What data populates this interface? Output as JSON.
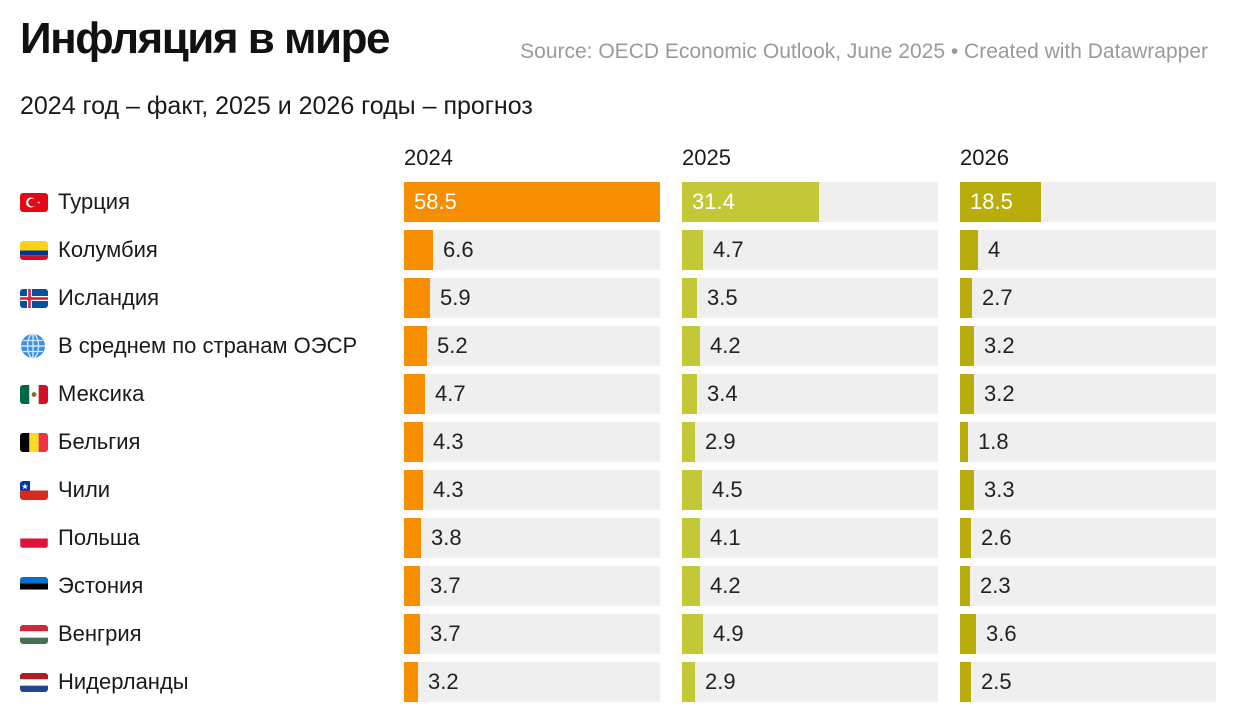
{
  "header": {
    "title": "Инфляция в мире",
    "source": "Source: OECD Economic Outlook, June 2025 • Created with Datawrapper",
    "subtitle": "2024 год – факт, 2025 и 2026 годы – прогноз"
  },
  "colors": {
    "y2024": "#f78d00",
    "y2025": "#c2c836",
    "y2026": "#b8ad0b",
    "track": "#efefef"
  },
  "chart_data": {
    "type": "bar",
    "title": "Инфляция в мире",
    "subtitle": "2024 год – факт, 2025 и 2026 годы – прогноз",
    "categories": [
      "Турция",
      "Колумбия",
      "Исландия",
      "В среднем по странам ОЭСР",
      "Мексика",
      "Бельгия",
      "Чили",
      "Польша",
      "Эстония",
      "Венгрия",
      "Нидерланды"
    ],
    "flags": [
      "turkey-flag-icon",
      "colombia-flag-icon",
      "iceland-flag-icon",
      "globe-icon",
      "mexico-flag-icon",
      "belgium-flag-icon",
      "chile-flag-icon",
      "poland-flag-icon",
      "estonia-flag-icon",
      "hungary-flag-icon",
      "netherlands-flag-icon"
    ],
    "series": [
      {
        "name": "2024",
        "values": [
          58.5,
          6.6,
          5.9,
          5.2,
          4.7,
          4.3,
          4.3,
          3.8,
          3.7,
          3.7,
          3.2
        ],
        "labels": [
          "58.5",
          "6.6",
          "5.9",
          "5.2",
          "4.7",
          "4.3",
          "4.3",
          "3.8",
          "3.7",
          "3.7",
          "3.2"
        ]
      },
      {
        "name": "2025",
        "values": [
          31.4,
          4.7,
          3.5,
          4.2,
          3.4,
          2.9,
          4.5,
          4.1,
          4.2,
          4.9,
          2.9
        ],
        "labels": [
          "31.4",
          "4.7",
          "3.5",
          "4.2",
          "3.4",
          "2.9",
          "4.5",
          "4.1",
          "4.2",
          "4.9",
          "2.9"
        ]
      },
      {
        "name": "2026",
        "values": [
          18.5,
          4,
          2.7,
          3.2,
          3.2,
          1.8,
          3.3,
          2.6,
          2.3,
          3.6,
          2.5
        ],
        "labels": [
          "18.5",
          "4",
          "2.7",
          "3.2",
          "3.2",
          "1.8",
          "3.3",
          "2.6",
          "2.3",
          "3.6",
          "2.5"
        ]
      }
    ],
    "xlim": [
      0,
      58.5
    ]
  }
}
